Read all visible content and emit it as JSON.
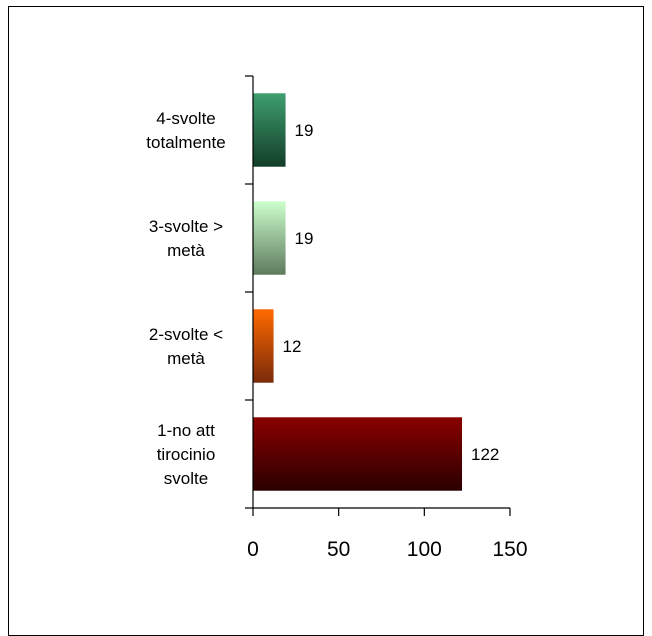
{
  "chart_data": {
    "type": "bar",
    "orientation": "horizontal",
    "categories": [
      [
        "1-no att",
        "tirocinio",
        "svolte"
      ],
      [
        "2-svolte <",
        "metà"
      ],
      [
        "3-svolte >",
        "metà"
      ],
      [
        "4-svolte",
        "totalmente"
      ]
    ],
    "values": [
      122,
      12,
      19,
      19
    ],
    "xlim": [
      0,
      150
    ],
    "xticks": [
      0,
      50,
      100,
      150
    ],
    "grid": false,
    "legend": "none",
    "bar_colors": [
      {
        "top": "#8a0000",
        "bottom": "#2a0000"
      },
      {
        "top": "#ff6a00",
        "bottom": "#7a2a0a"
      },
      {
        "top": "#ccffcc",
        "bottom": "#5e7a5e"
      },
      {
        "top": "#3f9f70",
        "bottom": "#123d28"
      }
    ]
  }
}
